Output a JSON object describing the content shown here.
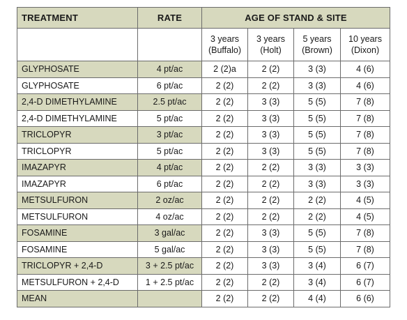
{
  "header": {
    "treatment": "TREATMENT",
    "rate": "RATE",
    "age_site": "AGE OF STAND & SITE"
  },
  "sites": [
    {
      "years": "3 years",
      "name": "(Buffalo)"
    },
    {
      "years": "3 years",
      "name": "(Holt)"
    },
    {
      "years": "5 years",
      "name": "(Brown)"
    },
    {
      "years": "10 years",
      "name": "(Dixon)"
    }
  ],
  "rows": [
    {
      "treatment": "GLYPHOSATE",
      "rate": "4 pt/ac",
      "values": [
        "2 (2)a",
        "2 (2)",
        "3 (3)",
        "4 (6)"
      ],
      "shaded": true
    },
    {
      "treatment": "GLYPHOSATE",
      "rate": "6 pt/ac",
      "values": [
        "2 (2)",
        "2 (2)",
        "3 (3)",
        "4 (6)"
      ],
      "shaded": false
    },
    {
      "treatment": "2,4-D DIMETHYLAMINE",
      "rate": "2.5 pt/ac",
      "values": [
        "2 (2)",
        "3 (3)",
        "5 (5)",
        "7 (8)"
      ],
      "shaded": true
    },
    {
      "treatment": "2,4-D DIMETHYLAMINE",
      "rate": "5 pt/ac",
      "values": [
        "2 (2)",
        "3 (3)",
        "5 (5)",
        "7 (8)"
      ],
      "shaded": false
    },
    {
      "treatment": "TRICLOPYR",
      "rate": "3 pt/ac",
      "values": [
        "2 (2)",
        "3 (3)",
        "5 (5)",
        "7 (8)"
      ],
      "shaded": true
    },
    {
      "treatment": "TRICLOPYR",
      "rate": "5 pt/ac",
      "values": [
        "2 (2)",
        "3 (3)",
        "5 (5)",
        "7 (8)"
      ],
      "shaded": false
    },
    {
      "treatment": "IMAZAPYR",
      "rate": "4 pt/ac",
      "values": [
        "2 (2)",
        "2 (2)",
        "3 (3)",
        "3 (3)"
      ],
      "shaded": true
    },
    {
      "treatment": "IMAZAPYR",
      "rate": "6 pt/ac",
      "values": [
        "2 (2)",
        "2 (2)",
        "3 (3)",
        "3 (3)"
      ],
      "shaded": false
    },
    {
      "treatment": "METSULFURON",
      "rate": "2 oz/ac",
      "values": [
        "2 (2)",
        "2 (2)",
        "2 (2)",
        "4 (5)"
      ],
      "shaded": true
    },
    {
      "treatment": "METSULFURON",
      "rate": "4 oz/ac",
      "values": [
        "2 (2)",
        "2 (2)",
        "2 (2)",
        "4 (5)"
      ],
      "shaded": false
    },
    {
      "treatment": "FOSAMINE",
      "rate": "3 gal/ac",
      "values": [
        "2 (2)",
        "3 (3)",
        "5 (5)",
        "7 (8)"
      ],
      "shaded": true
    },
    {
      "treatment": "FOSAMINE",
      "rate": "5 gal/ac",
      "values": [
        "2 (2)",
        "3 (3)",
        "5 (5)",
        "7 (8)"
      ],
      "shaded": false
    },
    {
      "treatment": "TRICLOPYR + 2,4-D",
      "rate": "3 + 2.5 pt/ac",
      "values": [
        "2 (2)",
        "3 (3)",
        "3 (4)",
        "6 (7)"
      ],
      "shaded": true
    },
    {
      "treatment": "METSULFURON + 2,4-D",
      "rate": "1 + 2.5 pt/ac",
      "values": [
        "2 (2)",
        "2 (2)",
        "3 (4)",
        "6 (7)"
      ],
      "shaded": false
    },
    {
      "treatment": "MEAN",
      "rate": "",
      "values": [
        "2 (2)",
        "2 (2)",
        "4 (4)",
        "6 (6)"
      ],
      "shaded": true
    }
  ],
  "colors": {
    "shade": "#d7d9be",
    "border": "#6b6b6b"
  }
}
